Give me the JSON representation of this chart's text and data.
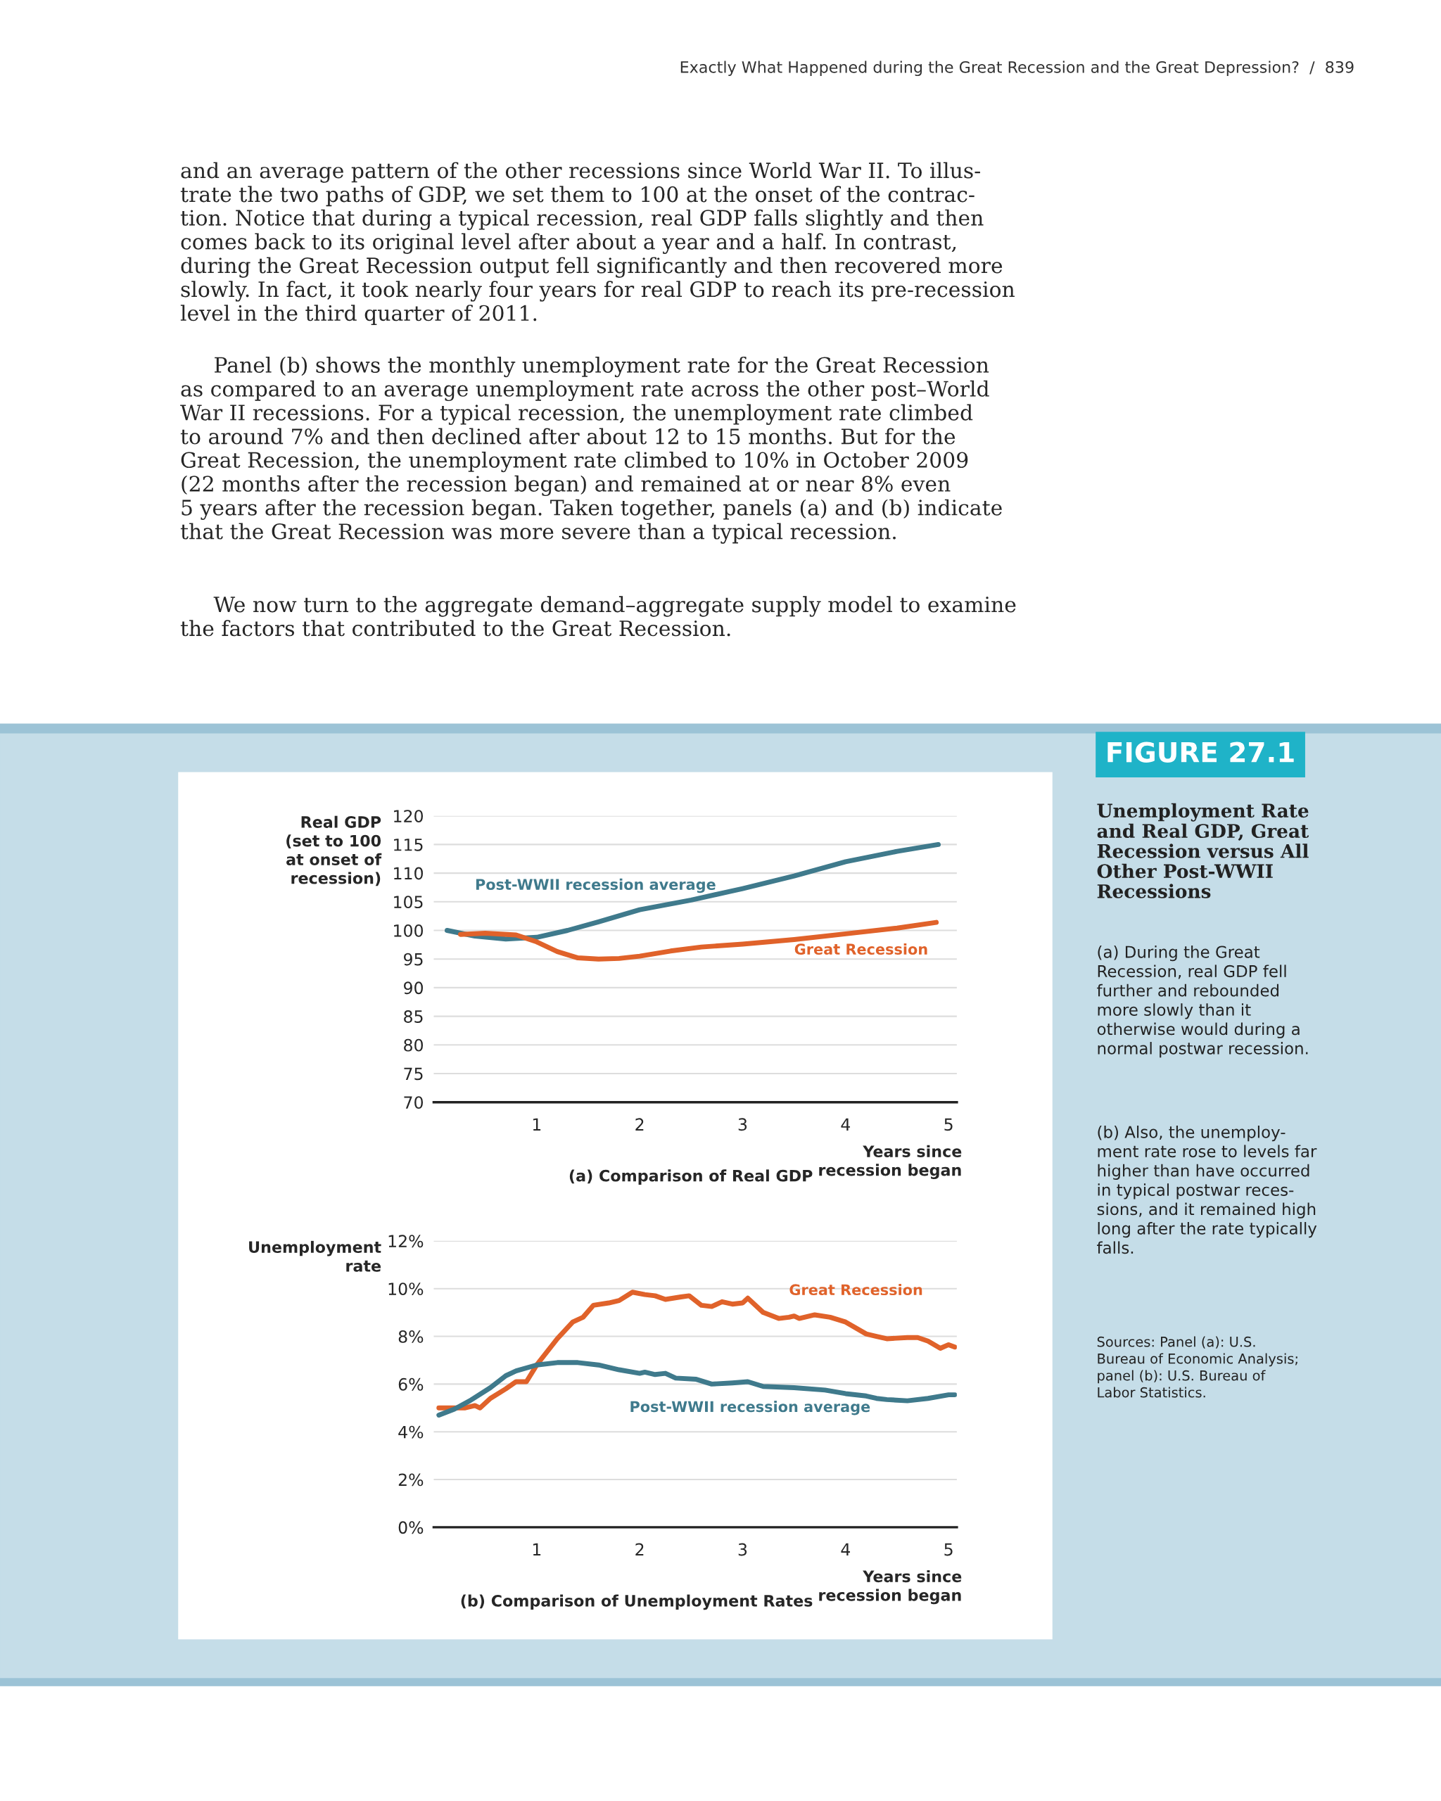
{
  "chart_data": [
    {
      "type": "line",
      "title": "(a) Comparison of Real GDP",
      "xlabel": "Years since\nrecession began",
      "ylabel": "Real GDP\n(set to 100\nat onset of\nrecession)",
      "xlim": [
        0,
        5.08
      ],
      "xticks": [
        1,
        2,
        3,
        4,
        5
      ],
      "ylim": [
        70,
        120
      ],
      "yticks": [
        70,
        75,
        80,
        85,
        90,
        95,
        100,
        105,
        110,
        115,
        120
      ],
      "grid": "y",
      "legend": false,
      "marker": "none",
      "line_style": "solid",
      "series": [
        {
          "name": "Post-WWII recession average",
          "color": "#3f7a8c",
          "x": [
            0.13,
            0.4,
            0.7,
            1.0,
            1.3,
            1.6,
            2.0,
            2.5,
            3.0,
            3.5,
            4.0,
            4.5,
            4.9
          ],
          "values": [
            100,
            99,
            98.5,
            98.8,
            100,
            101.5,
            103.6,
            105.3,
            107.3,
            109.5,
            112,
            113.8,
            115
          ]
        },
        {
          "name": "Great Recession",
          "color": "#e0622a",
          "x": [
            0.26,
            0.5,
            0.8,
            1.0,
            1.2,
            1.4,
            1.6,
            1.8,
            2.0,
            2.3,
            2.6,
            3.0,
            3.5,
            4.0,
            4.5,
            4.88
          ],
          "values": [
            99.3,
            99.5,
            99.2,
            98,
            96.3,
            95.2,
            95,
            95.1,
            95.5,
            96.4,
            97.1,
            97.6,
            98.4,
            99.4,
            100.4,
            101.4
          ]
        }
      ],
      "annotations": [
        "Exactly What Happened during the Great Recession and the Great Depression?  /  839",
        "and an average pattern of the other recessions since World War II. To illus-\ntrate the two paths of GDP, we set them to 100 at the onset of the contrac-\ntion. Notice that during a typical recession, real GDP falls slightly and then\ncomes back to its original level after about a year and a half. In contrast,\nduring the Great Recession output fell significantly and then recovered more\nslowly. In fact, it took nearly four years for real GDP to reach its pre-recession\nlevel in the third quarter of 2011.",
        "     Panel (b) shows the monthly unemployment rate for the Great Recession\nas compared to an average unemployment rate across the other post–World\nWar II recessions. For a typical recession, the unemployment rate climbed\nto around 7% and then declined after about 12 to 15 months. But for the\nGreat Recession, the unemployment rate climbed to 10% in October 2009\n(22 months after the recession began) and remained at or near 8% even\n5 years after the recession began. Taken together, panels (a) and (b) indicate\nthat the Great Recession was more severe than a typical recession.",
        "     We now turn to the aggregate demand–aggregate supply model to examine\nthe factors that contributed to the Great Recession.",
        "FIGURE 27.1",
        "Unemployment Rate\nand Real GDP, Great\nRecession versus All\nOther Post-WWII\nRecessions",
        "(a) During the Great\nRecession, real GDP fell\nfurther and rebounded\nmore slowly than it\notherwise would during a\nnormal postwar recession.",
        "(b) Also, the unemploy-\nment rate rose to levels far\nhigher than have occurred\nin typical postwar reces-\nsions, and it remained high\nlong after the rate typically\nfalls.",
        "Sources: Panel (a): U.S.\nBureau of Economic Analysis;\npanel (b): U.S. Bureau of\nLabor Statistics."
      ]
    },
    {
      "type": "line",
      "title": "(b) Comparison of Unemployment Rates",
      "xlabel": "Years since\nrecession began",
      "ylabel": "Unemployment\nrate",
      "xlim": [
        0,
        5.08
      ],
      "xticks": [
        1,
        2,
        3,
        4,
        5
      ],
      "ylim": [
        0,
        12
      ],
      "yticks": [
        {
          "value": 0,
          "label": "0%"
        },
        {
          "value": 2,
          "label": "2%"
        },
        {
          "value": 4,
          "label": "4%"
        },
        {
          "value": 6,
          "label": "6%"
        },
        {
          "value": 8,
          "label": "8%"
        },
        {
          "value": 10,
          "label": "10%"
        },
        {
          "value": 12,
          "label": "12%"
        }
      ],
      "grid": "y",
      "legend": false,
      "marker": "none",
      "line_style": "solid",
      "series": [
        {
          "name": "Great Recession",
          "color": "#e0622a",
          "x": [
            0.05,
            0.3,
            0.4,
            0.45,
            0.55,
            0.7,
            0.8,
            0.9,
            1.0,
            1.2,
            1.35,
            1.45,
            1.55,
            1.7,
            1.8,
            1.93,
            2.05,
            2.15,
            2.25,
            2.4,
            2.48,
            2.6,
            2.7,
            2.8,
            2.9,
            3.0,
            3.05,
            3.2,
            3.35,
            3.45,
            3.5,
            3.55,
            3.7,
            3.85,
            4.0,
            4.2,
            4.3,
            4.4,
            4.6,
            4.7,
            4.8,
            4.92,
            5.0,
            5.06
          ],
          "values": [
            5.0,
            5.0,
            5.1,
            5.0,
            5.4,
            5.8,
            6.1,
            6.1,
            6.8,
            7.9,
            8.6,
            8.8,
            9.3,
            9.4,
            9.5,
            9.85,
            9.75,
            9.7,
            9.55,
            9.65,
            9.7,
            9.3,
            9.25,
            9.45,
            9.35,
            9.4,
            9.6,
            9.0,
            8.75,
            8.8,
            8.85,
            8.75,
            8.9,
            8.8,
            8.6,
            8.1,
            8.0,
            7.9,
            7.95,
            7.95,
            7.8,
            7.5,
            7.65,
            7.55
          ]
        },
        {
          "name": "Post-WWII recession average",
          "color": "#3f7a8c",
          "x": [
            0.05,
            0.2,
            0.35,
            0.55,
            0.7,
            0.8,
            1.0,
            1.2,
            1.4,
            1.6,
            1.8,
            2.0,
            2.05,
            2.15,
            2.25,
            2.35,
            2.55,
            2.7,
            2.9,
            3.05,
            3.2,
            3.5,
            3.8,
            4.0,
            4.2,
            4.3,
            4.4,
            4.6,
            4.8,
            5.0,
            5.06
          ],
          "values": [
            4.7,
            4.95,
            5.3,
            5.85,
            6.35,
            6.55,
            6.8,
            6.9,
            6.9,
            6.8,
            6.6,
            6.45,
            6.5,
            6.4,
            6.45,
            6.25,
            6.2,
            6.0,
            6.05,
            6.1,
            5.9,
            5.85,
            5.75,
            5.6,
            5.5,
            5.4,
            5.35,
            5.3,
            5.4,
            5.55,
            5.55
          ]
        }
      ]
    }
  ]
}
